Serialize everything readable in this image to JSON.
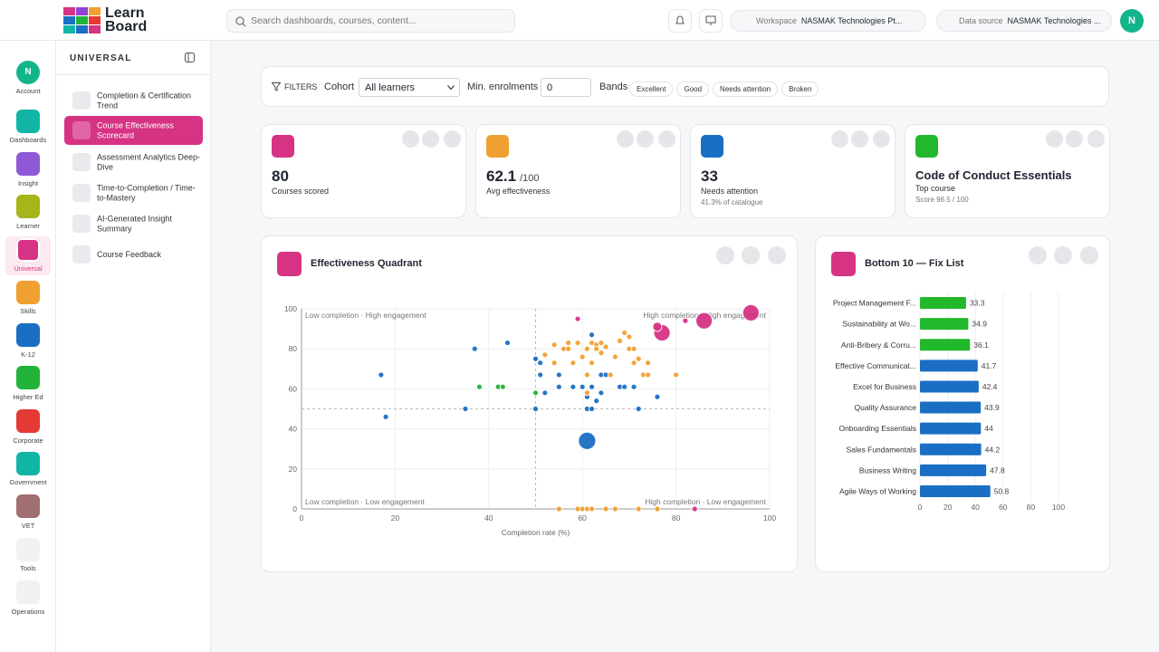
{
  "header": {
    "logo": [
      "Learn",
      "Board"
    ],
    "search": "Search dashboards, courses, content...",
    "workspace_label": "Workspace",
    "workspace_value": "NASMAK Technologies Pt...",
    "data_source_label": "Data source",
    "data_source_value": "NASMAK Technologies ...",
    "avatar": "N"
  },
  "rail": [
    {
      "label": "Account",
      "initial": "N"
    },
    {
      "label": "Dashboards"
    },
    {
      "label": "Insight"
    },
    {
      "label": "Learner"
    },
    {
      "label": "Universal"
    },
    {
      "label": "Skills"
    },
    {
      "label": "K-12"
    },
    {
      "label": "Higher Ed"
    },
    {
      "label": "Corporate"
    },
    {
      "label": "Government"
    },
    {
      "label": "VET"
    },
    {
      "label": "Tools"
    },
    {
      "label": "Operations"
    }
  ],
  "sidebar": {
    "title": "UNIVERSAL",
    "items": [
      "Completion & Certification Trend",
      "Course Effectiveness Scorecard",
      "Assessment Analytics Deep-Dive",
      "Time-to-Completion / Time-to-Mastery",
      "AI-Generated Insight Summary",
      "Course Feedback"
    ]
  },
  "filters": {
    "title": "FILTERS",
    "cohort_label": "Cohort",
    "cohort_value": "All learners",
    "min_label": "Min. enrolments",
    "min_value": "0",
    "bands_label": "Bands",
    "bands": [
      "Excellent",
      "Good",
      "Needs attention",
      "Broken"
    ]
  },
  "kpis": [
    {
      "value": 80,
      "label": "Courses scored"
    },
    {
      "value": 62.1,
      "suffix": "/100",
      "label": "Avg effectiveness"
    },
    {
      "value": 33,
      "label": "Needs attention",
      "note": "41.3% of catalogue"
    },
    {
      "value": "Code of Conduct Essentials",
      "label": "Top course",
      "note": "Score 96.5 / 100"
    }
  ],
  "chart_data": [
    {
      "type": "scatter",
      "title": "Effectiveness Quadrant",
      "x_label": "Completion rate (%)",
      "xlim": [
        0,
        100
      ],
      "ylim": [
        0,
        100
      ],
      "xticks": [
        0,
        20,
        40,
        60,
        80,
        100
      ],
      "yticks": [
        0,
        20,
        40,
        60,
        80,
        100
      ],
      "grid": true,
      "reference_lines": {
        "x": 50,
        "y": 50
      },
      "annotations": [
        "Low completion · High engagement",
        "High completion · High engagement",
        "Low completion · Low engagement",
        "High completion · Low engagement"
      ],
      "series": [
        {
          "color": "#1a6fc4",
          "x": [
            17,
            18,
            37,
            44,
            35,
            50,
            50,
            51,
            51,
            52,
            55,
            55,
            58,
            62,
            60,
            62,
            61,
            64,
            63,
            64,
            65,
            61,
            62,
            68,
            69,
            71,
            72,
            76,
            61
          ],
          "values": [
            67,
            46,
            80,
            83,
            50,
            75,
            50,
            73,
            67,
            58,
            67,
            61,
            61,
            87,
            61,
            61,
            56,
            58,
            54,
            67,
            67,
            50,
            50,
            61,
            61,
            61,
            50,
            56,
            34
          ],
          "sizes": [
            9,
            9,
            9,
            9,
            9,
            9,
            9,
            9,
            9,
            9,
            9,
            9,
            9,
            9,
            9,
            9,
            9,
            9,
            9,
            9,
            9,
            9,
            9,
            9,
            9,
            9,
            9,
            9,
            90
          ]
        },
        {
          "color": "#f0a030",
          "x": [
            52,
            54,
            56,
            57,
            57,
            59,
            54,
            58,
            60,
            61,
            62,
            63,
            64,
            63,
            64,
            65,
            67,
            68,
            69,
            70,
            70,
            71,
            72,
            61,
            66,
            73,
            74,
            80,
            74,
            71,
            62,
            61,
            55,
            59,
            60,
            61,
            62,
            65,
            67,
            72,
            76
          ],
          "values": [
            77,
            82,
            80,
            83,
            80,
            83,
            73,
            73,
            76,
            80,
            83,
            82,
            83,
            80,
            78,
            81,
            76,
            84,
            88,
            86,
            80,
            80,
            75,
            67,
            67,
            67,
            67,
            67,
            73,
            73,
            73,
            58,
            0,
            0,
            0,
            0,
            0,
            0,
            0,
            0,
            0
          ],
          "sizes": [
            9,
            9,
            9,
            9,
            9,
            9,
            9,
            9,
            9,
            9,
            9,
            9,
            9,
            9,
            9,
            9,
            9,
            9,
            9,
            9,
            9,
            9,
            9,
            9,
            9,
            9,
            9,
            9,
            9,
            9,
            9,
            9,
            9,
            9,
            9,
            9,
            9,
            9,
            9,
            9,
            9
          ]
        },
        {
          "color": "#22b33a",
          "x": [
            38,
            42,
            43,
            50
          ],
          "values": [
            61,
            61,
            61,
            58
          ],
          "sizes": [
            9,
            9,
            9,
            9
          ]
        },
        {
          "color": "#d63384",
          "x": [
            59,
            77,
            76,
            82,
            86,
            96,
            84
          ],
          "values": [
            95,
            88,
            91,
            94,
            94,
            98,
            0
          ],
          "sizes": [
            9,
            81,
            25,
            9,
            81,
            81,
            9
          ]
        }
      ]
    },
    {
      "type": "hbar",
      "title": "Bottom 10 — Fix List",
      "categories": [
        "Project Management F...",
        "Sustainability at Wo...",
        "Anti-Bribery & Corru...",
        "Effective Communicat...",
        "Excel for Business",
        "Quality Assurance",
        "Onboarding Essentials",
        "Sales Fundamentals",
        "Business Writing",
        "Agile Ways of Working"
      ],
      "values": [
        33.3,
        34.9,
        36.1,
        41.7,
        42.4,
        43.9,
        44,
        44.2,
        47.8,
        50.8
      ],
      "colors": [
        "#22b82c",
        "#22b82c",
        "#22b82c",
        "#1a6fc4",
        "#1a6fc4",
        "#1a6fc4",
        "#1a6fc4",
        "#1a6fc4",
        "#1a6fc4",
        "#1a6fc4"
      ],
      "xlim": [
        0,
        100
      ],
      "xticks": [
        0,
        20,
        40,
        60,
        80,
        100
      ],
      "grid": true
    }
  ]
}
